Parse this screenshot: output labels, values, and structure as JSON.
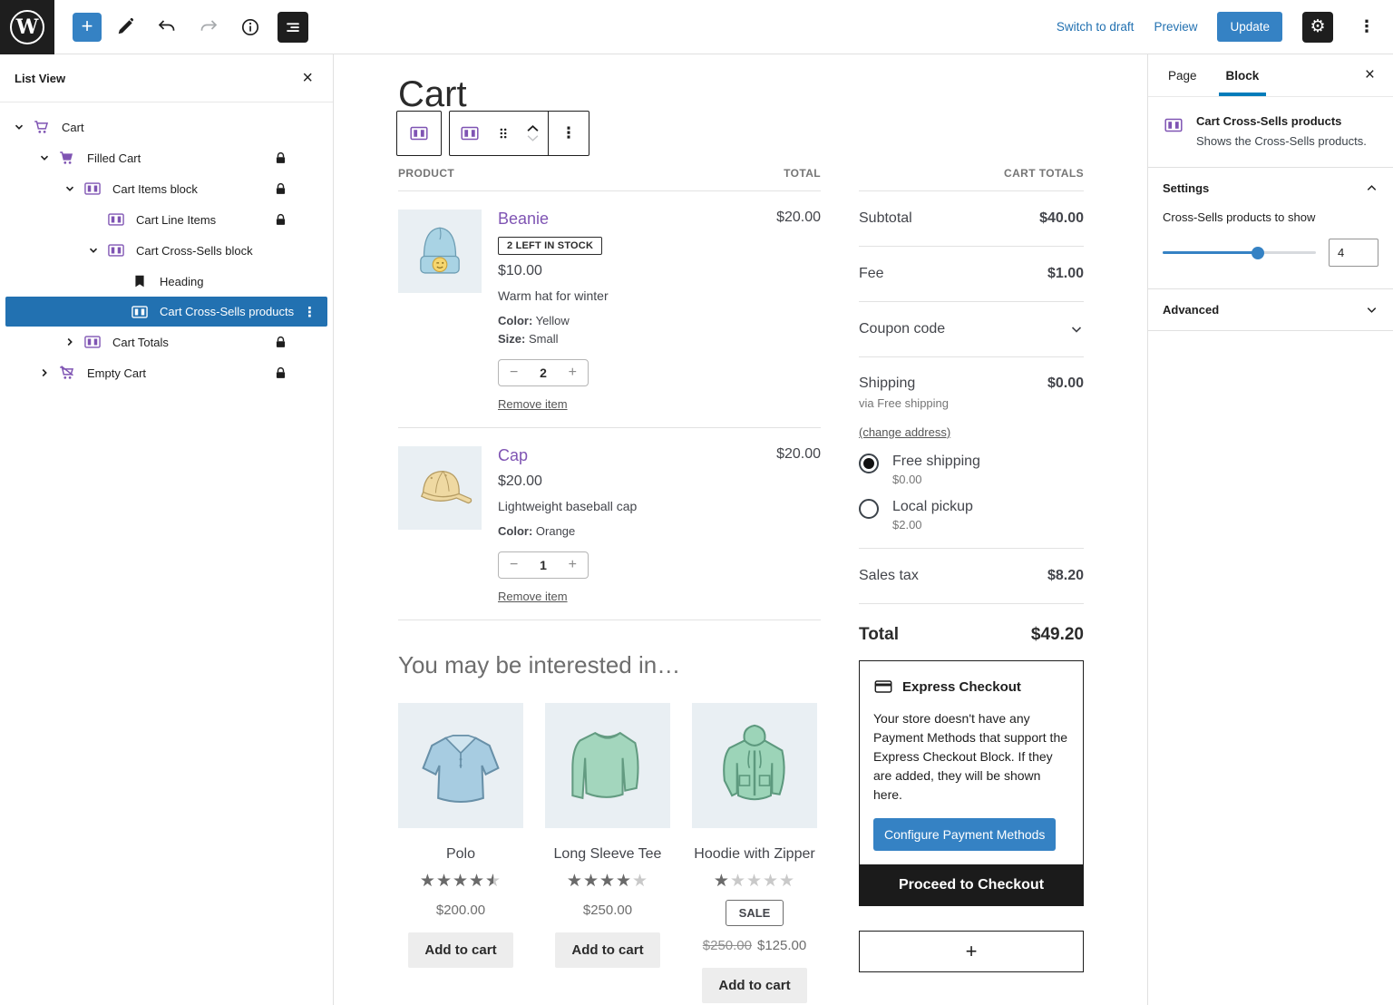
{
  "topbar": {
    "switch_to_draft": "Switch to draft",
    "preview": "Preview",
    "update": "Update"
  },
  "list_view": {
    "title": "List View",
    "items": [
      {
        "label": "Cart"
      },
      {
        "label": "Filled Cart"
      },
      {
        "label": "Cart Items block"
      },
      {
        "label": "Cart Line Items"
      },
      {
        "label": "Cart Cross-Sells block"
      },
      {
        "label": "Heading"
      },
      {
        "label": "Cart Cross-Sells products"
      },
      {
        "label": "Cart Totals"
      },
      {
        "label": "Empty Cart"
      }
    ]
  },
  "canvas": {
    "page_title": "Cart",
    "table": {
      "product_header": "PRODUCT",
      "total_header": "TOTAL",
      "stepper": {
        "minus": "−",
        "plus": "+"
      },
      "items": [
        {
          "name": "Beanie",
          "total": "$20.00",
          "badge": "2 LEFT IN STOCK",
          "price": "$10.00",
          "description": "Warm hat for winter",
          "attr1_label": "Color:",
          "attr1_value": "Yellow",
          "attr2_label": "Size:",
          "attr2_value": "Small",
          "quantity": "2",
          "remove_label": "Remove item"
        },
        {
          "name": "Cap",
          "total": "$20.00",
          "price": "$20.00",
          "description": "Lightweight baseball cap",
          "attr1_label": "Color:",
          "attr1_value": "Orange",
          "quantity": "1",
          "remove_label": "Remove item"
        }
      ]
    },
    "cross_sells": {
      "heading": "You may be interested in…",
      "products": [
        {
          "name": "Polo",
          "rating": 4.5,
          "price": "$200.00",
          "add_label": "Add to cart"
        },
        {
          "name": "Long Sleeve Tee",
          "rating": 4,
          "price": "$250.00",
          "add_label": "Add to cart"
        },
        {
          "name": "Hoodie with Zipper",
          "rating": 1,
          "sale_badge": "SALE",
          "regular_price": "$250.00",
          "sale_price": "$125.00",
          "add_label": "Add to cart"
        }
      ]
    },
    "totals": {
      "header": "CART TOTALS",
      "subtotal_label": "Subtotal",
      "subtotal": "$40.00",
      "fee_label": "Fee",
      "fee": "$1.00",
      "coupon_label": "Coupon code",
      "shipping_label": "Shipping",
      "shipping": "$0.00",
      "shipping_via": "via Free shipping",
      "change_address": "(change address)",
      "option1_label": "Free shipping",
      "option1_price": "$0.00",
      "option2_label": "Local pickup",
      "option2_price": "$2.00",
      "tax_label": "Sales tax",
      "tax": "$8.20",
      "total_label": "Total",
      "total": "$49.20"
    },
    "express": {
      "title": "Express Checkout",
      "message": "Your store doesn't have any Payment Methods that support the Express Checkout Block. If they are added, they will be shown here.",
      "button": "Configure Payment Methods"
    },
    "proceed_label": "Proceed to Checkout",
    "appender_label": "+"
  },
  "sidebar": {
    "tabs": {
      "page": "Page",
      "block": "Block"
    },
    "block_card": {
      "title": "Cart Cross-Sells products",
      "description": "Shows the Cross-Sells products."
    },
    "settings": {
      "title": "Settings",
      "control_label": "Cross-Sells products to show",
      "value": "4"
    },
    "advanced": {
      "title": "Advanced"
    }
  },
  "colors": {
    "accent_blue": "#3582c4",
    "tab_blue": "#007cba",
    "woo_purple": "#7f54b3",
    "selected_row_blue": "#2271b1",
    "dark": "#1e1e1e"
  }
}
